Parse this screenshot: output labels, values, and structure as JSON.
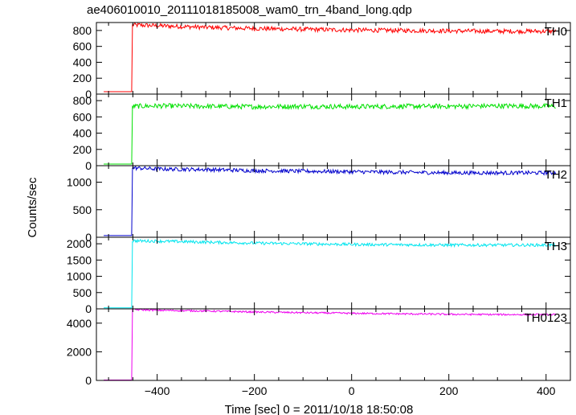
{
  "title": "ae406010010_20111018185008_wam0_trn_4band_long.qdp",
  "ylabel": "Counts/sec",
  "xlabel": "Time [sec] 0 = 2011/10/18 18:50:08",
  "chart_data": {
    "type": "line",
    "title": "ae406010010_20111018185008_wam0_trn_4band_long.qdp",
    "xlabel": "Time [sec] 0 = 2011/10/18 18:50:08",
    "ylabel": "Counts/sec",
    "xlim": [
      -525,
      450
    ],
    "x_ticks": [
      -400,
      -200,
      0,
      200,
      400
    ],
    "grid": false,
    "panels": [
      {
        "name": "TH0",
        "color": "#ff0000",
        "ylim": [
          0,
          900
        ],
        "y_ticks": [
          0,
          200,
          400,
          600,
          800
        ],
        "x": [
          -510,
          -452,
          -451,
          -400,
          -300,
          -200,
          -100,
          0,
          100,
          200,
          300,
          420
        ],
        "values": [
          30,
          30,
          870,
          860,
          840,
          825,
          815,
          805,
          800,
          795,
          790,
          790
        ],
        "noise": 28
      },
      {
        "name": "TH1",
        "color": "#00e000",
        "ylim": [
          0,
          880
        ],
        "y_ticks": [
          0,
          200,
          400,
          600,
          800
        ],
        "x": [
          -510,
          -452,
          -451,
          -400,
          -300,
          -200,
          -100,
          0,
          100,
          200,
          300,
          420
        ],
        "values": [
          20,
          20,
          730,
          735,
          730,
          725,
          730,
          725,
          730,
          730,
          735,
          730
        ],
        "noise": 30
      },
      {
        "name": "TH2",
        "color": "#0000cc",
        "ylim": [
          0,
          1300
        ],
        "y_ticks": [
          0,
          500,
          1000
        ],
        "x": [
          -510,
          -452,
          -451,
          -400,
          -300,
          -200,
          -100,
          0,
          100,
          200,
          300,
          420
        ],
        "values": [
          30,
          30,
          1260,
          1240,
          1230,
          1210,
          1200,
          1190,
          1180,
          1170,
          1170,
          1170
        ],
        "noise": 35
      },
      {
        "name": "TH3",
        "color": "#00e5ee",
        "ylim": [
          0,
          2200
        ],
        "y_ticks": [
          0,
          500,
          1000,
          1500,
          2000
        ],
        "x": [
          -510,
          -452,
          -451,
          -400,
          -300,
          -200,
          -100,
          0,
          100,
          200,
          300,
          420
        ],
        "values": [
          30,
          30,
          2090,
          2080,
          2050,
          2020,
          2000,
          1980,
          1970,
          1960,
          1960,
          1960
        ],
        "noise": 45
      },
      {
        "name": "TH0123",
        "color": "#ee00ee",
        "ylim": [
          0,
          5000
        ],
        "y_ticks": [
          0,
          2000,
          4000
        ],
        "x": [
          -510,
          -452,
          -451,
          -400,
          -300,
          -200,
          -100,
          0,
          100,
          200,
          300,
          420
        ],
        "values": [
          30,
          30,
          4950,
          4900,
          4850,
          4780,
          4730,
          4690,
          4650,
          4620,
          4600,
          4600
        ],
        "noise": 60
      }
    ]
  }
}
